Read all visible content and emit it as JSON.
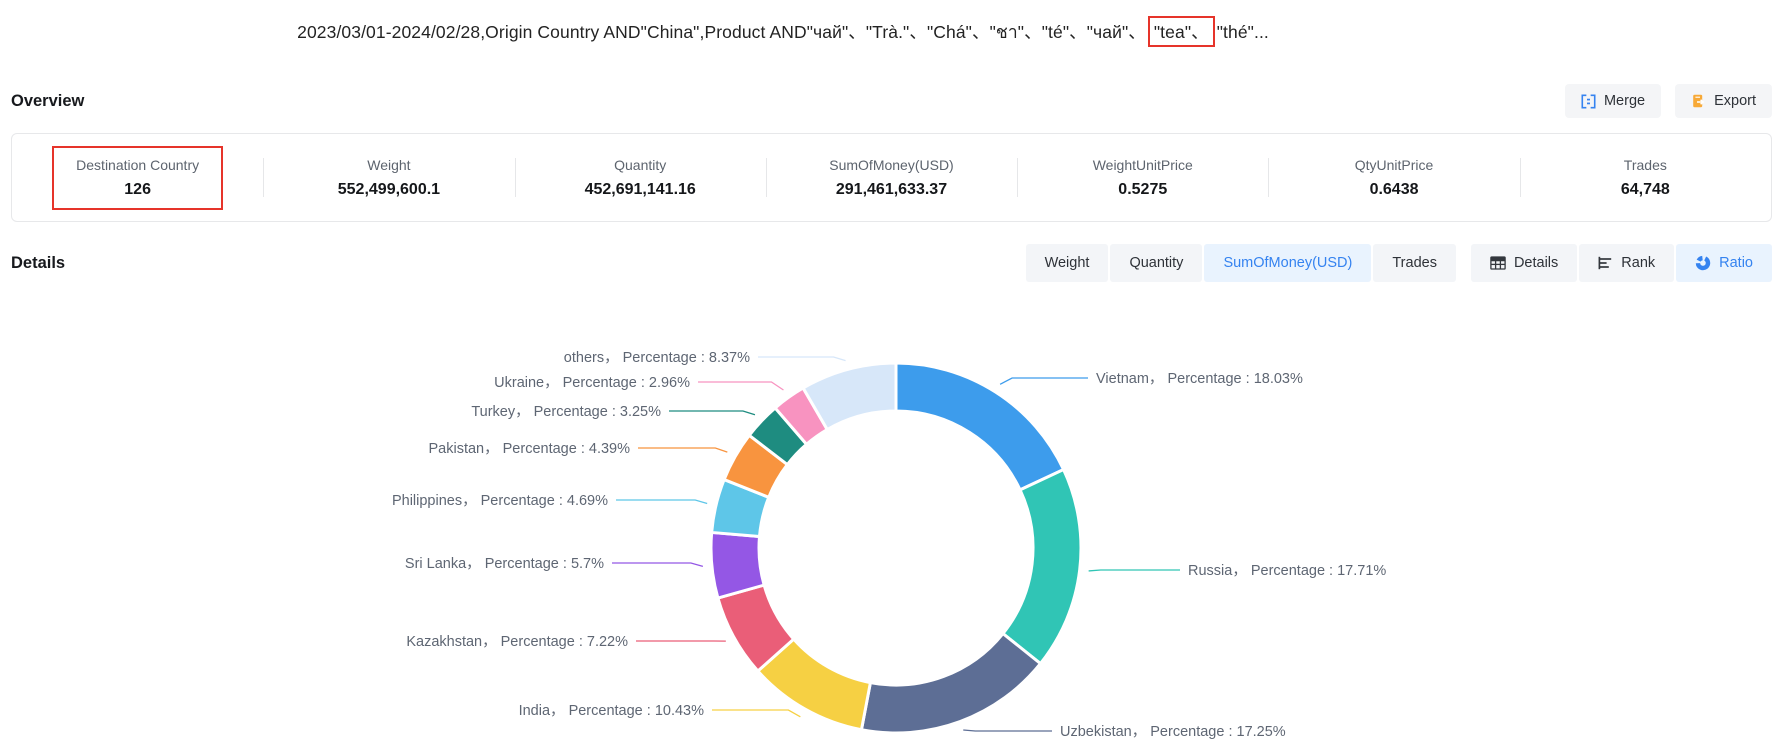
{
  "header": {
    "query_before": "2023/03/01-2024/02/28,Origin Country AND\"China\",Product AND\"чай\"、\"Trà.\"、\"Chá\"、\"ชา\"、\"té\"、\"чай\"、",
    "query_highlight": "\"tea\"、",
    "query_after": "\"thé\"..."
  },
  "overview": {
    "title": "Overview",
    "merge_label": "Merge",
    "export_label": "Export",
    "stats": [
      {
        "label": "Destination Country",
        "value": "126",
        "highlighted": true
      },
      {
        "label": "Weight",
        "value": "552,499,600.1"
      },
      {
        "label": "Quantity",
        "value": "452,691,141.16"
      },
      {
        "label": "SumOfMoney(USD)",
        "value": "291,461,633.37"
      },
      {
        "label": "WeightUnitPrice",
        "value": "0.5275"
      },
      {
        "label": "QtyUnitPrice",
        "value": "0.6438"
      },
      {
        "label": "Trades",
        "value": "64,748"
      }
    ]
  },
  "details": {
    "title": "Details",
    "metric_tabs": [
      "Weight",
      "Quantity",
      "SumOfMoney(USD)",
      "Trades"
    ],
    "active_metric_tab": "SumOfMoney(USD)",
    "view_tabs": [
      "Details",
      "Rank",
      "Ratio"
    ],
    "active_view_tab": "Ratio"
  },
  "colors": {
    "accent_blue": "#3583f0",
    "active_tab_bg": "#e9f3fe",
    "annotation_red": "#e6342a",
    "export_icon_orange": "#f7a937"
  },
  "chart_data": {
    "type": "pie",
    "donut": true,
    "start": "top",
    "direction": "clockwise",
    "label_word": "Percentage",
    "unit": "%",
    "legend_position": "callout-labels",
    "slices": [
      {
        "name": "Vietnam",
        "value": 18.03,
        "pct": "18.03",
        "color": "#3D9CEC"
      },
      {
        "name": "Russia",
        "value": 17.71,
        "pct": "17.71",
        "color": "#30C5B5"
      },
      {
        "name": "Uzbekistan",
        "value": 17.25,
        "pct": "17.25",
        "color": "#5D6E95"
      },
      {
        "name": "India",
        "value": 10.43,
        "pct": "10.43",
        "color": "#F6D043"
      },
      {
        "name": "Kazakhstan",
        "value": 7.22,
        "pct": "7.22",
        "color": "#EA5E78"
      },
      {
        "name": "Sri Lanka",
        "value": 5.7,
        "pct": "5.7",
        "color": "#9457E5"
      },
      {
        "name": "Philippines",
        "value": 4.69,
        "pct": "4.69",
        "color": "#5EC6E8"
      },
      {
        "name": "Pakistan",
        "value": 4.39,
        "pct": "4.39",
        "color": "#F8943F"
      },
      {
        "name": "Turkey",
        "value": 3.25,
        "pct": "3.25",
        "color": "#1E8C80"
      },
      {
        "name": "Ukraine",
        "value": 2.96,
        "pct": "2.96",
        "color": "#F893C0"
      },
      {
        "name": "others",
        "value": 8.37,
        "pct": "8.37",
        "color": "#D7E7F9"
      }
    ]
  }
}
